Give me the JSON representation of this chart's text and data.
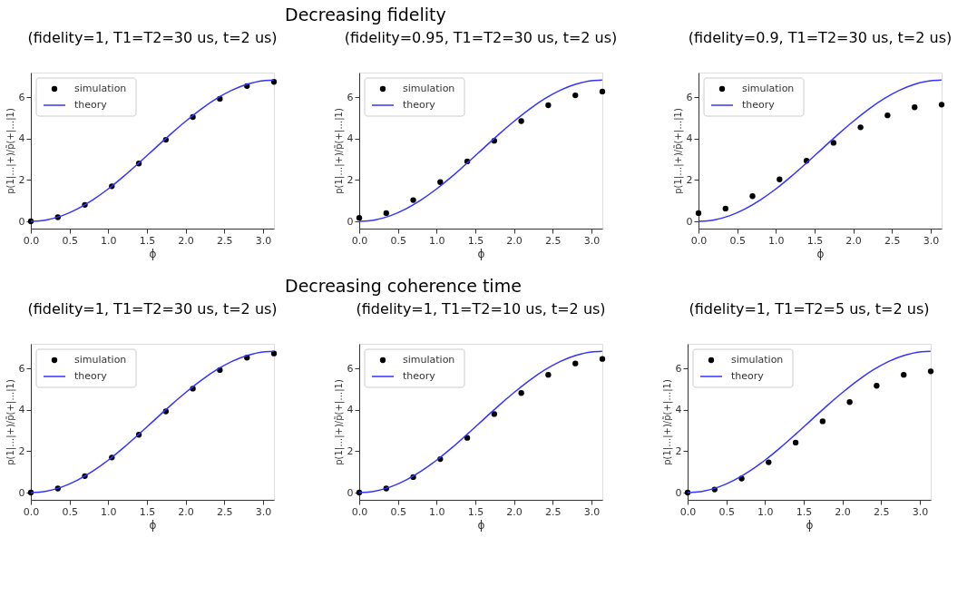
{
  "chart_data": [
    {
      "type": "scatter",
      "title": "(fidelity=1, T1=T2=30 us, t=2 us)",
      "xlabel": "ϕ",
      "ylabel": "p(1|…|+)/p̃(+|…|1)",
      "annotations": [
        "Decreasing fidelity"
      ],
      "legend": "top left",
      "grid": false,
      "xlim": [
        0,
        3.142
      ],
      "ylim": [
        -0.35,
        7.2
      ],
      "xticks": [
        {
          "value": 0,
          "label": "0.0"
        },
        0.5,
        {
          "value": 1,
          "label": "1.0"
        },
        1.5,
        {
          "value": 2,
          "label": "2.0"
        },
        2.5,
        {
          "value": 3,
          "label": "3.0"
        }
      ],
      "yticks": [
        0,
        2,
        4,
        6
      ],
      "x": [
        0,
        0.349,
        0.698,
        1.047,
        1.396,
        1.745,
        2.094,
        2.443,
        2.793,
        3.142
      ],
      "series": [
        {
          "name": "simulation",
          "marker": "circle",
          "color": "#000000",
          "values": [
            0,
            0.2,
            0.8,
            1.7,
            2.8,
            3.95,
            5.05,
            5.93,
            6.55,
            6.75
          ]
        },
        {
          "name": "theory",
          "type": "line",
          "line_style": "solid",
          "color": "#3333ff",
          "x": [
            0,
            0.2,
            0.4,
            0.6,
            0.8,
            1.0,
            1.2,
            1.4,
            1.6,
            1.8,
            2.0,
            2.2,
            2.4,
            2.6,
            2.8,
            3.0,
            3.14
          ],
          "values": [
            0,
            0.07,
            0.27,
            0.6,
            1.04,
            1.57,
            2.18,
            2.84,
            3.52,
            4.2,
            4.84,
            5.43,
            5.94,
            6.35,
            6.64,
            6.81,
            6.84
          ]
        }
      ]
    },
    {
      "type": "scatter",
      "title": "(fidelity=0.95, T1=T2=30 us, t=2 us)",
      "xlabel": "ϕ",
      "ylabel": "p(1|…|+)/p̃(+|…|1)",
      "legend": "top left",
      "grid": false,
      "xlim": [
        0,
        3.142
      ],
      "ylim": [
        -0.35,
        7.2
      ],
      "xticks": [
        {
          "value": 0,
          "label": "0.0"
        },
        0.5,
        {
          "value": 1,
          "label": "1.0"
        },
        1.5,
        {
          "value": 2,
          "label": "2.0"
        },
        2.5,
        {
          "value": 3,
          "label": "3.0"
        }
      ],
      "yticks": [
        0,
        2,
        4,
        6
      ],
      "x": [
        0,
        0.349,
        0.698,
        1.047,
        1.396,
        1.745,
        2.094,
        2.443,
        2.793,
        3.142
      ],
      "series": [
        {
          "name": "simulation",
          "marker": "circle",
          "color": "#000000",
          "values": [
            0.17,
            0.4,
            1.03,
            1.9,
            2.9,
            3.9,
            4.85,
            5.62,
            6.1,
            6.28
          ]
        },
        {
          "name": "theory",
          "type": "line",
          "line_style": "solid",
          "color": "#3333ff",
          "x": [
            0,
            0.2,
            0.4,
            0.6,
            0.8,
            1.0,
            1.2,
            1.4,
            1.6,
            1.8,
            2.0,
            2.2,
            2.4,
            2.6,
            2.8,
            3.0,
            3.14
          ],
          "values": [
            0,
            0.07,
            0.27,
            0.6,
            1.04,
            1.57,
            2.18,
            2.84,
            3.52,
            4.2,
            4.84,
            5.43,
            5.94,
            6.35,
            6.64,
            6.81,
            6.84
          ]
        }
      ]
    },
    {
      "type": "scatter",
      "title": "(fidelity=0.9, T1=T2=30 us, t=2 us)",
      "xlabel": "ϕ",
      "ylabel": "p(1|…|+)/p̃(+|…|1)",
      "legend": "top left",
      "grid": false,
      "xlim": [
        0,
        3.142
      ],
      "ylim": [
        -0.35,
        7.2
      ],
      "xticks": [
        {
          "value": 0,
          "label": "0.0"
        },
        0.5,
        {
          "value": 1,
          "label": "1.0"
        },
        1.5,
        {
          "value": 2,
          "label": "2.0"
        },
        2.5,
        {
          "value": 3,
          "label": "3.0"
        }
      ],
      "yticks": [
        0,
        2,
        4,
        6
      ],
      "x": [
        0,
        0.349,
        0.698,
        1.047,
        1.396,
        1.745,
        2.094,
        2.443,
        2.793,
        3.142
      ],
      "series": [
        {
          "name": "simulation",
          "marker": "circle",
          "color": "#000000",
          "values": [
            0.4,
            0.62,
            1.22,
            2.03,
            2.93,
            3.8,
            4.55,
            5.13,
            5.52,
            5.65
          ]
        },
        {
          "name": "theory",
          "type": "line",
          "line_style": "solid",
          "color": "#3333ff",
          "x": [
            0,
            0.2,
            0.4,
            0.6,
            0.8,
            1.0,
            1.2,
            1.4,
            1.6,
            1.8,
            2.0,
            2.2,
            2.4,
            2.6,
            2.8,
            3.0,
            3.14
          ],
          "values": [
            0,
            0.07,
            0.27,
            0.6,
            1.04,
            1.57,
            2.18,
            2.84,
            3.52,
            4.2,
            4.84,
            5.43,
            5.94,
            6.35,
            6.64,
            6.81,
            6.84
          ]
        }
      ]
    },
    {
      "type": "scatter",
      "title": "(fidelity=1, T1=T2=30 us, t=2 us)",
      "xlabel": "ϕ",
      "ylabel": "p(1|…|+)/p̃(+|…|1)",
      "annotations": [
        "Decreasing coherence time"
      ],
      "legend": "top left",
      "grid": false,
      "xlim": [
        0,
        3.142
      ],
      "ylim": [
        -0.35,
        7.2
      ],
      "xticks": [
        {
          "value": 0,
          "label": "0.0"
        },
        0.5,
        {
          "value": 1,
          "label": "1.0"
        },
        1.5,
        {
          "value": 2,
          "label": "2.0"
        },
        2.5,
        {
          "value": 3,
          "label": "3.0"
        }
      ],
      "yticks": [
        0,
        2,
        4,
        6
      ],
      "x": [
        0,
        0.349,
        0.698,
        1.047,
        1.396,
        1.745,
        2.094,
        2.443,
        2.793,
        3.142
      ],
      "series": [
        {
          "name": "simulation",
          "marker": "circle",
          "color": "#000000",
          "values": [
            0,
            0.2,
            0.8,
            1.7,
            2.8,
            3.93,
            5.03,
            5.93,
            6.53,
            6.73
          ]
        },
        {
          "name": "theory",
          "type": "line",
          "line_style": "solid",
          "color": "#3333ff",
          "x": [
            0,
            0.2,
            0.4,
            0.6,
            0.8,
            1.0,
            1.2,
            1.4,
            1.6,
            1.8,
            2.0,
            2.2,
            2.4,
            2.6,
            2.8,
            3.0,
            3.14
          ],
          "values": [
            0,
            0.07,
            0.27,
            0.6,
            1.04,
            1.57,
            2.18,
            2.84,
            3.52,
            4.2,
            4.84,
            5.43,
            5.94,
            6.35,
            6.64,
            6.81,
            6.84
          ]
        }
      ]
    },
    {
      "type": "scatter",
      "title": "(fidelity=1, T1=T2=10 us, t=2 us)",
      "xlabel": "ϕ",
      "ylabel": "p(1|…|+)/p̃(+|…|1)",
      "legend": "top left",
      "grid": false,
      "xlim": [
        0,
        3.142
      ],
      "ylim": [
        -0.35,
        7.2
      ],
      "xticks": [
        {
          "value": 0,
          "label": "0.0"
        },
        0.5,
        {
          "value": 1,
          "label": "1.0"
        },
        1.5,
        {
          "value": 2,
          "label": "2.0"
        },
        2.5,
        {
          "value": 3,
          "label": "3.0"
        }
      ],
      "yticks": [
        0,
        2,
        4,
        6
      ],
      "x": [
        0,
        0.349,
        0.698,
        1.047,
        1.396,
        1.745,
        2.094,
        2.443,
        2.793,
        3.142
      ],
      "series": [
        {
          "name": "simulation",
          "marker": "circle",
          "color": "#000000",
          "values": [
            0,
            0.2,
            0.75,
            1.62,
            2.65,
            3.8,
            4.82,
            5.7,
            6.25,
            6.47
          ]
        },
        {
          "name": "theory",
          "type": "line",
          "line_style": "solid",
          "color": "#3333ff",
          "x": [
            0,
            0.2,
            0.4,
            0.6,
            0.8,
            1.0,
            1.2,
            1.4,
            1.6,
            1.8,
            2.0,
            2.2,
            2.4,
            2.6,
            2.8,
            3.0,
            3.14
          ],
          "values": [
            0,
            0.07,
            0.27,
            0.6,
            1.04,
            1.57,
            2.18,
            2.84,
            3.52,
            4.2,
            4.84,
            5.43,
            5.94,
            6.35,
            6.64,
            6.81,
            6.84
          ]
        }
      ]
    },
    {
      "type": "scatter",
      "title": "(fidelity=1, T1=T2=5 us, t=2 us)",
      "xlabel": "ϕ",
      "ylabel": "p(1|…|+)/p̃(+|…|1)",
      "legend": "top left",
      "grid": false,
      "xlim": [
        0,
        3.142
      ],
      "ylim": [
        -0.35,
        7.2
      ],
      "xticks": [
        {
          "value": 0,
          "label": "0.0"
        },
        0.5,
        {
          "value": 1,
          "label": "1.0"
        },
        1.5,
        {
          "value": 2,
          "label": "2.0"
        },
        2.5,
        {
          "value": 3,
          "label": "3.0"
        }
      ],
      "yticks": [
        0,
        2,
        4,
        6
      ],
      "x": [
        0,
        0.349,
        0.698,
        1.047,
        1.396,
        1.745,
        2.094,
        2.443,
        2.793,
        3.142
      ],
      "series": [
        {
          "name": "simulation",
          "marker": "circle",
          "color": "#000000",
          "values": [
            0,
            0.15,
            0.68,
            1.47,
            2.42,
            3.45,
            4.38,
            5.17,
            5.7,
            5.87
          ]
        },
        {
          "name": "theory",
          "type": "line",
          "line_style": "solid",
          "color": "#3333ff",
          "x": [
            0,
            0.2,
            0.4,
            0.6,
            0.8,
            1.0,
            1.2,
            1.4,
            1.6,
            1.8,
            2.0,
            2.2,
            2.4,
            2.6,
            2.8,
            3.0,
            3.14
          ],
          "values": [
            0,
            0.07,
            0.27,
            0.6,
            1.04,
            1.57,
            2.18,
            2.84,
            3.52,
            4.2,
            4.84,
            5.43,
            5.94,
            6.35,
            6.64,
            6.81,
            6.84
          ]
        }
      ]
    }
  ]
}
